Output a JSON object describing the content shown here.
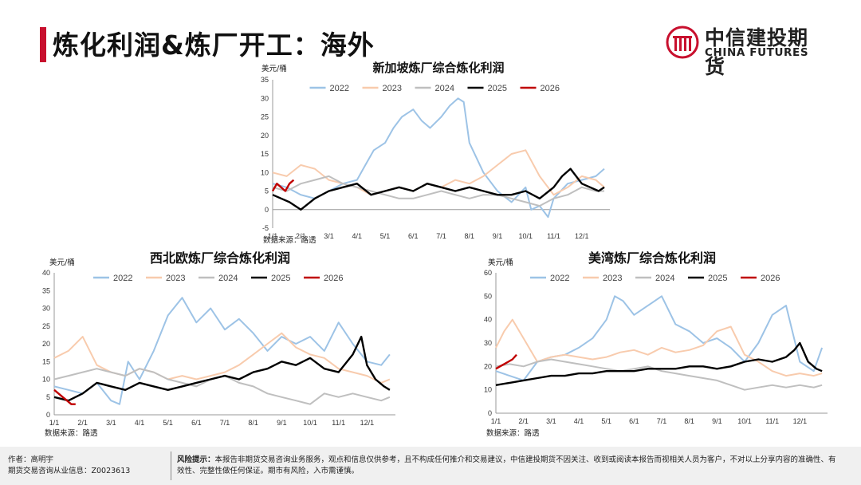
{
  "page": {
    "title": "炼化利润&炼厂开工：海外",
    "logo_cn": "中信建投期货",
    "logo_en": "CHINA FUTURES",
    "footer_author": "作者：高明宇",
    "footer_license": "期货交易咨询从业信息：Z0023613",
    "footer_risk_label": "风险提示：",
    "footer_risk_text": "本报告非期货交易咨询业务服务，观点和信息仅供参考，且不构成任何推介和交易建议，中信建投期货不因关注、收到或阅读本报告而视相关人员为客户，不对以上分享内容的准确性、有效性、完整性做任何保证。期市有风险，入市需谨慎。"
  },
  "colors": {
    "accent": "#c8102e",
    "s2022": "#9dc3e6",
    "s2023": "#f8cbad",
    "s2024": "#bfbfbf",
    "s2025": "#000000",
    "s2026": "#c00000"
  },
  "chart_data": [
    {
      "type": "line",
      "title": "新加坡炼厂综合炼化利润",
      "unit": "美元/桶",
      "source": "数据来源：路透",
      "x_ticks": [
        "1/1",
        "2/1",
        "3/1",
        "4/1",
        "5/1",
        "6/1",
        "7/1",
        "8/1",
        "9/1",
        "10/1",
        "11/1",
        "12/1"
      ],
      "y_ticks": [
        -5,
        0,
        5,
        10,
        15,
        20,
        25,
        30,
        35
      ],
      "ylim": [
        -5,
        35
      ],
      "grid": false,
      "legend": "top",
      "series": [
        {
          "name": "2022",
          "x": [
            0,
            0.5,
            1,
            1.5,
            2,
            2.5,
            3,
            3.3,
            3.6,
            4,
            4.3,
            4.6,
            5,
            5.3,
            5.6,
            6,
            6.3,
            6.6,
            6.8,
            7,
            7.5,
            8,
            8.5,
            9,
            9.2,
            9.5,
            9.8,
            10,
            10.5,
            11,
            11.5,
            11.8
          ],
          "values": [
            7,
            6,
            4,
            3,
            5,
            7,
            8,
            12,
            16,
            18,
            22,
            25,
            27,
            24,
            22,
            25,
            28,
            30,
            29,
            18,
            10,
            5,
            2,
            6,
            0,
            1,
            -2,
            3,
            7,
            8,
            9,
            11
          ]
        },
        {
          "name": "2023",
          "x": [
            0,
            0.5,
            1,
            1.5,
            2,
            2.5,
            3,
            3.5,
            4,
            4.5,
            5,
            5.5,
            6,
            6.5,
            7,
            7.5,
            8,
            8.5,
            9,
            9.5,
            10,
            10.5,
            11,
            11.5,
            11.8
          ],
          "values": [
            10,
            9,
            12,
            11,
            8,
            7,
            6,
            4,
            5,
            6,
            5,
            7,
            6,
            8,
            7,
            9,
            12,
            15,
            16,
            9,
            4,
            6,
            9,
            8,
            6
          ]
        },
        {
          "name": "2024",
          "x": [
            0,
            0.5,
            1,
            1.5,
            2,
            2.5,
            3,
            3.5,
            4,
            4.5,
            5,
            5.5,
            6,
            6.5,
            7,
            7.5,
            8,
            8.5,
            9,
            9.5,
            10,
            10.5,
            11,
            11.5,
            11.8
          ],
          "values": [
            6,
            5,
            7,
            8,
            9,
            7,
            6,
            5,
            4,
            3,
            3,
            4,
            5,
            4,
            3,
            4,
            4,
            3,
            2,
            1,
            3,
            4,
            6,
            5,
            5
          ]
        },
        {
          "name": "2025",
          "x": [
            0,
            0.3,
            0.6,
            1,
            1.5,
            2,
            2.5,
            3,
            3.5,
            4,
            4.5,
            5,
            5.5,
            6,
            6.5,
            7,
            7.5,
            8,
            8.5,
            9,
            9.5,
            10,
            10.3,
            10.6,
            11,
            11.3,
            11.6,
            11.8
          ],
          "values": [
            4,
            3,
            2,
            0,
            3,
            5,
            6,
            7,
            4,
            5,
            6,
            5,
            7,
            6,
            5,
            6,
            5,
            4,
            4,
            5,
            3,
            6,
            9,
            11,
            7,
            6,
            5,
            6
          ]
        },
        {
          "name": "2026",
          "x": [
            0,
            0.15,
            0.3,
            0.45,
            0.6,
            0.75
          ],
          "values": [
            5,
            7,
            6,
            5,
            7,
            8
          ]
        }
      ]
    },
    {
      "type": "line",
      "title": "西北欧炼厂综合炼化利润",
      "unit": "美元/桶",
      "source": "数据来源：路透",
      "x_ticks": [
        "1/1",
        "2/1",
        "3/1",
        "4/1",
        "5/1",
        "6/1",
        "7/1",
        "8/1",
        "9/1",
        "10/1",
        "11/1",
        "12/1"
      ],
      "y_ticks": [
        0,
        5,
        10,
        15,
        20,
        25,
        30,
        35,
        40
      ],
      "ylim": [
        0,
        40
      ],
      "grid": false,
      "legend": "top",
      "series": [
        {
          "name": "2022",
          "x": [
            0,
            0.5,
            1,
            1.5,
            2,
            2.3,
            2.6,
            3,
            3.5,
            4,
            4.5,
            5,
            5.5,
            6,
            6.5,
            7,
            7.5,
            8,
            8.5,
            9,
            9.5,
            10,
            10.5,
            11,
            11.5,
            11.8
          ],
          "values": [
            8,
            7,
            6,
            9,
            4,
            3,
            15,
            10,
            18,
            28,
            33,
            26,
            30,
            24,
            27,
            23,
            18,
            22,
            20,
            22,
            18,
            26,
            20,
            15,
            14,
            17
          ]
        },
        {
          "name": "2023",
          "x": [
            0,
            0.5,
            1,
            1.5,
            2,
            2.5,
            3,
            3.5,
            4,
            4.5,
            5,
            5.5,
            6,
            6.5,
            7,
            7.5,
            8,
            8.5,
            9,
            9.5,
            10,
            10.5,
            11,
            11.5,
            11.8
          ],
          "values": [
            16,
            18,
            22,
            14,
            12,
            11,
            13,
            12,
            10,
            11,
            10,
            11,
            12,
            14,
            17,
            20,
            23,
            19,
            17,
            16,
            13,
            12,
            11,
            9,
            10
          ]
        },
        {
          "name": "2024",
          "x": [
            0,
            0.5,
            1,
            1.5,
            2,
            2.5,
            3,
            3.5,
            4,
            4.5,
            5,
            5.5,
            6,
            6.5,
            7,
            7.5,
            8,
            8.5,
            9,
            9.5,
            10,
            10.5,
            11,
            11.5,
            11.8
          ],
          "values": [
            10,
            11,
            12,
            13,
            12,
            11,
            13,
            12,
            10,
            9,
            8,
            10,
            11,
            9,
            8,
            6,
            5,
            4,
            3,
            6,
            5,
            6,
            5,
            4,
            5
          ]
        },
        {
          "name": "2025",
          "x": [
            0,
            0.5,
            1,
            1.5,
            2,
            2.5,
            3,
            3.5,
            4,
            4.5,
            5,
            5.5,
            6,
            6.5,
            7,
            7.5,
            8,
            8.5,
            9,
            9.5,
            10,
            10.5,
            10.8,
            11,
            11.3,
            11.6,
            11.8
          ],
          "values": [
            5,
            4,
            6,
            9,
            8,
            7,
            9,
            8,
            7,
            8,
            9,
            10,
            11,
            10,
            12,
            13,
            15,
            14,
            16,
            13,
            12,
            17,
            22,
            14,
            10,
            8,
            7
          ]
        },
        {
          "name": "2026",
          "x": [
            0,
            0.15,
            0.3,
            0.45,
            0.6,
            0.75
          ],
          "values": [
            7,
            6,
            5,
            4,
            3,
            3
          ]
        }
      ]
    },
    {
      "type": "line",
      "title": "美湾炼厂综合炼化利润",
      "unit": "美元/桶",
      "source": "数据来源：路透",
      "x_ticks": [
        "1/1",
        "2/1",
        "3/1",
        "4/1",
        "5/1",
        "6/1",
        "7/1",
        "8/1",
        "9/1",
        "10/1",
        "11/1",
        "12/1"
      ],
      "y_ticks": [
        0,
        10,
        20,
        30,
        40,
        50,
        60
      ],
      "ylim": [
        0,
        60
      ],
      "grid": false,
      "legend": "top",
      "series": [
        {
          "name": "2022",
          "x": [
            0,
            0.5,
            1,
            1.5,
            2,
            2.5,
            3,
            3.5,
            4,
            4.3,
            4.6,
            5,
            5.5,
            6,
            6.5,
            7,
            7.5,
            8,
            8.5,
            9,
            9.5,
            10,
            10.5,
            11,
            11.5,
            11.8
          ],
          "values": [
            18,
            16,
            14,
            22,
            24,
            25,
            28,
            32,
            40,
            50,
            48,
            42,
            46,
            50,
            38,
            35,
            30,
            32,
            28,
            22,
            30,
            42,
            46,
            22,
            18,
            28
          ]
        },
        {
          "name": "2023",
          "x": [
            0,
            0.3,
            0.6,
            1,
            1.5,
            2,
            2.5,
            3,
            3.5,
            4,
            4.5,
            5,
            5.5,
            6,
            6.5,
            7,
            7.5,
            8,
            8.5,
            9,
            9.5,
            10,
            10.5,
            11,
            11.5,
            11.8
          ],
          "values": [
            28,
            35,
            40,
            32,
            22,
            24,
            25,
            24,
            23,
            24,
            26,
            27,
            25,
            28,
            26,
            27,
            29,
            35,
            37,
            25,
            22,
            18,
            16,
            17,
            16,
            17
          ]
        },
        {
          "name": "2024",
          "x": [
            0,
            0.5,
            1,
            1.5,
            2,
            2.5,
            3,
            3.5,
            4,
            4.5,
            5,
            5.5,
            6,
            6.5,
            7,
            7.5,
            8,
            8.5,
            9,
            9.5,
            10,
            10.5,
            11,
            11.5,
            11.8
          ],
          "values": [
            20,
            21,
            20,
            22,
            23,
            22,
            21,
            20,
            19,
            18,
            19,
            20,
            18,
            17,
            16,
            15,
            14,
            12,
            10,
            11,
            12,
            11,
            12,
            11,
            12
          ]
        },
        {
          "name": "2025",
          "x": [
            0,
            0.5,
            1,
            1.5,
            2,
            2.5,
            3,
            3.5,
            4,
            4.5,
            5,
            5.5,
            6,
            6.5,
            7,
            7.5,
            8,
            8.5,
            9,
            9.5,
            10,
            10.5,
            10.8,
            11,
            11.3,
            11.6,
            11.8
          ],
          "values": [
            12,
            13,
            14,
            15,
            16,
            16,
            17,
            17,
            18,
            18,
            18,
            19,
            19,
            19,
            20,
            20,
            19,
            20,
            22,
            23,
            22,
            24,
            27,
            30,
            22,
            19,
            18
          ]
        },
        {
          "name": "2026",
          "x": [
            0,
            0.15,
            0.3,
            0.45,
            0.6,
            0.75
          ],
          "values": [
            19,
            20,
            21,
            22,
            23,
            25
          ]
        }
      ]
    }
  ]
}
